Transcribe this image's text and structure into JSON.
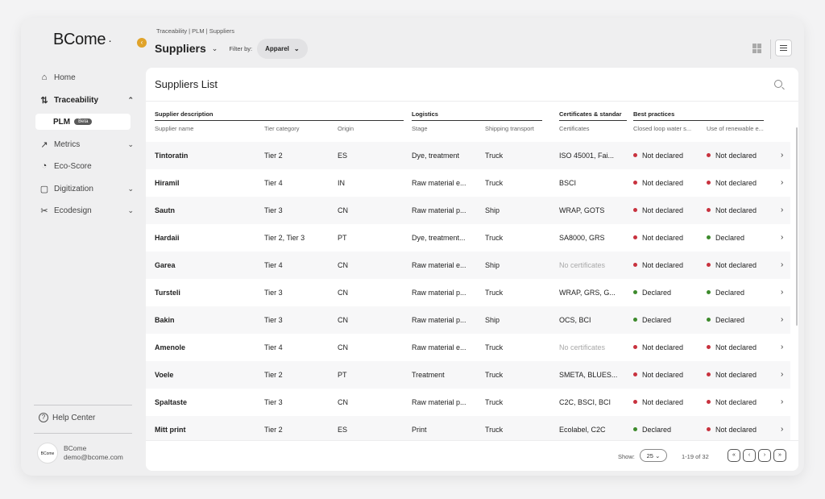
{
  "app": {
    "logo": "BCome",
    "logo_dot": "·"
  },
  "sidebar": {
    "items": [
      {
        "label": "Home",
        "icon": "home-icon",
        "glyph": "⌂"
      },
      {
        "label": "Traceability",
        "icon": "traceability-icon",
        "glyph": "⇅",
        "chevron": "⌃"
      },
      {
        "label": "Metrics",
        "icon": "metrics-icon",
        "glyph": "↗",
        "chevron": "⌄"
      },
      {
        "label": "Eco-Score",
        "icon": "gauge-icon",
        "glyph": "◔"
      },
      {
        "label": "Digitization",
        "icon": "document-icon",
        "glyph": "▢",
        "chevron": "⌄"
      },
      {
        "label": "Ecodesign",
        "icon": "ecodesign-icon",
        "glyph": "✂",
        "chevron": "⌄"
      }
    ],
    "sub_item": {
      "label": "PLM",
      "badge": "Beta"
    },
    "help": "Help Center",
    "user": {
      "name": "BCome",
      "email": "demo@bcome.com",
      "avatar_text": "BCome"
    }
  },
  "header": {
    "breadcrumb": "Traceability | PLM | Suppliers",
    "title": "Suppliers",
    "filter_label": "Filter by:",
    "filter_value": "Apparel"
  },
  "list": {
    "title": "Suppliers List",
    "groups": [
      "Supplier description",
      "Logistics",
      "Certificates & standar",
      "Best practices"
    ],
    "columns": [
      "Supplier name",
      "Tier category",
      "Origin",
      "Stage",
      "Shipping transport",
      "Certificates",
      "Closed loop water s...",
      "Use of renewable e..."
    ],
    "rows": [
      {
        "name": "Tintoratin",
        "tier": "Tier 2",
        "origin": "ES",
        "stage": "Dye, treatment",
        "transport": "Truck",
        "certs": "ISO 45001, Fai...",
        "water": "Not declared",
        "renewable": "Not declared"
      },
      {
        "name": "Hiramil",
        "tier": "Tier 4",
        "origin": "IN",
        "stage": "Raw material e...",
        "transport": "Truck",
        "certs": "BSCI",
        "water": "Not declared",
        "renewable": "Not declared"
      },
      {
        "name": "Sautn",
        "tier": "Tier 3",
        "origin": "CN",
        "stage": "Raw material p...",
        "transport": "Ship",
        "certs": "WRAP, GOTS",
        "water": "Not declared",
        "renewable": "Not declared"
      },
      {
        "name": "Hardaii",
        "tier": "Tier 2, Tier 3",
        "origin": "PT",
        "stage": "Dye, treatment...",
        "transport": "Truck",
        "certs": "SA8000, GRS",
        "water": "Not declared",
        "renewable": "Declared"
      },
      {
        "name": "Garea",
        "tier": "Tier 4",
        "origin": "CN",
        "stage": "Raw material e...",
        "transport": "Ship",
        "certs": "No certificates",
        "water": "Not declared",
        "renewable": "Not declared"
      },
      {
        "name": "Tursteli",
        "tier": "Tier 3",
        "origin": "CN",
        "stage": "Raw material p...",
        "transport": "Truck",
        "certs": "WRAP, GRS, G...",
        "water": "Declared",
        "renewable": "Declared"
      },
      {
        "name": "Bakin",
        "tier": "Tier 3",
        "origin": "CN",
        "stage": "Raw material p...",
        "transport": "Ship",
        "certs": "OCS, BCI",
        "water": "Declared",
        "renewable": "Declared"
      },
      {
        "name": "Amenole",
        "tier": "Tier 4",
        "origin": "CN",
        "stage": "Raw material e...",
        "transport": "Truck",
        "certs": "No certificates",
        "water": "Not declared",
        "renewable": "Not declared"
      },
      {
        "name": "Voele",
        "tier": "Tier 2",
        "origin": "PT",
        "stage": "Treatment",
        "transport": "Truck",
        "certs": "SMETA, BLUES...",
        "water": "Not declared",
        "renewable": "Not declared"
      },
      {
        "name": "Spaltaste",
        "tier": "Tier 3",
        "origin": "CN",
        "stage": "Raw material p...",
        "transport": "Truck",
        "certs": "C2C, BSCI, BCI",
        "water": "Not declared",
        "renewable": "Not declared"
      },
      {
        "name": "Mitt print",
        "tier": "Tier 2",
        "origin": "ES",
        "stage": "Print",
        "transport": "Truck",
        "certs": "Ecolabel, C2C",
        "water": "Declared",
        "renewable": "Not declared"
      }
    ],
    "no_cert_text": "No certificates",
    "row_chevron": "›"
  },
  "footer": {
    "show_label": "Show:",
    "page_size": "25",
    "range": "1-19 of 32",
    "pager": [
      "«",
      "‹",
      "›",
      "»"
    ]
  },
  "colors": {
    "declared": "#3d8a2c",
    "not_declared": "#c8323e",
    "accent": "#e0a32a"
  }
}
